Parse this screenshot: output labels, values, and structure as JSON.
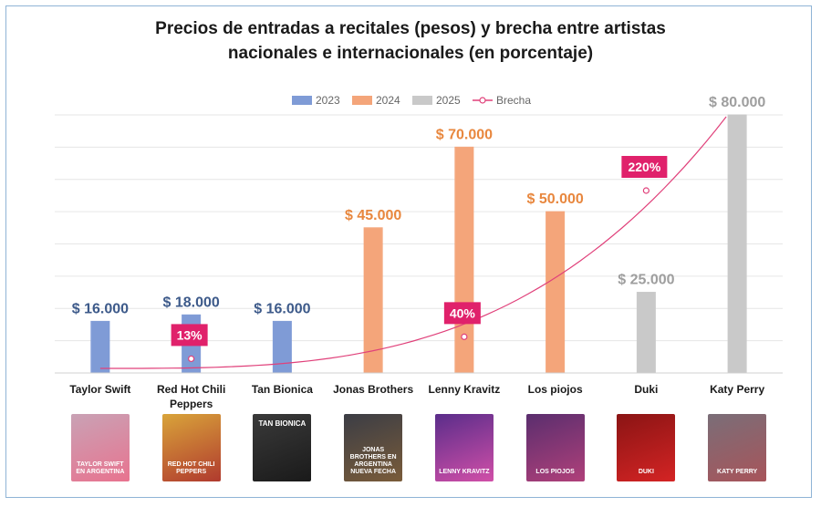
{
  "title_line1": "Precios de entradas a recitales (pesos) y brecha entre artistas",
  "title_line2": "nacionales e internacionales (en porcentaje)",
  "chart_data": {
    "type": "bar",
    "categories": [
      "Taylor Swift",
      "Red Hot Chili Peppers",
      "Tan Bionica",
      "Jonas Brothers",
      "Lenny Kravitz",
      "Los piojos",
      "Duki",
      "Katy Perry"
    ],
    "series": [
      {
        "name": "2023",
        "color": "#7f9bd6",
        "label_color": "#3d5a8a",
        "values": [
          16000,
          18000,
          16000,
          null,
          null,
          null,
          null,
          null
        ]
      },
      {
        "name": "2024",
        "color": "#f4a57a",
        "label_color": "#e8873e",
        "values": [
          null,
          null,
          null,
          45000,
          70000,
          50000,
          null,
          null
        ]
      },
      {
        "name": "2025",
        "color": "#c9c9c9",
        "label_color": "#9e9e9e",
        "values": [
          null,
          null,
          null,
          null,
          null,
          null,
          25000,
          80000
        ]
      },
      {
        "name": "Brecha",
        "color": "#e0407a",
        "type": "line",
        "values": [
          null,
          13,
          null,
          null,
          40,
          null,
          220,
          null
        ]
      }
    ],
    "value_labels": [
      "$ 16.000",
      "$ 18.000",
      "$ 16.000",
      "$ 45.000",
      "$ 70.000",
      "$ 50.000",
      "$ 25.000",
      "$ 80.000"
    ],
    "brecha_labels": [
      {
        "category": "Red Hot Chili Peppers",
        "text": "13%"
      },
      {
        "category": "Lenny Kravitz",
        "text": "40%"
      },
      {
        "category": "Duki",
        "text": "220%"
      }
    ],
    "ylim": [
      0,
      80000
    ],
    "grid": true,
    "legend": "top"
  },
  "photos": [
    {
      "name": "taylor-swift-photo",
      "text": "TAYLOR SWIFT EN ARGENTINA",
      "bg": "#c9a2b5",
      "fg": "#e8738f"
    },
    {
      "name": "red-hot-chili-peppers-photo",
      "text": "RED HOT CHILI PEPPERS",
      "bg": "#d9a43a",
      "fg": "#b03a2e"
    },
    {
      "name": "tan-bionica-photo",
      "text": "TAN BIONICA",
      "bg": "#3a3a3a",
      "fg": "#1a1a1a",
      "top": true
    },
    {
      "name": "jonas-brothers-photo",
      "text": "JONAS BROTHERS EN ARGENTINA NUEVA FECHA",
      "bg": "#3b3d45",
      "fg": "#7a5c3a"
    },
    {
      "name": "lenny-kravitz-photo",
      "text": "LENNY KRAVITZ",
      "bg": "#5a2d8a",
      "fg": "#d14fa8"
    },
    {
      "name": "los-piojos-photo",
      "text": "LOS PIOJOS",
      "bg": "#5a2e6e",
      "fg": "#b0407a"
    },
    {
      "name": "duki-photo",
      "text": "DUKI",
      "bg": "#8a1414",
      "fg": "#d42424"
    },
    {
      "name": "katy-perry-photo",
      "text": "KATY PERRY",
      "bg": "#7a6e78",
      "fg": "#a8545a"
    }
  ]
}
